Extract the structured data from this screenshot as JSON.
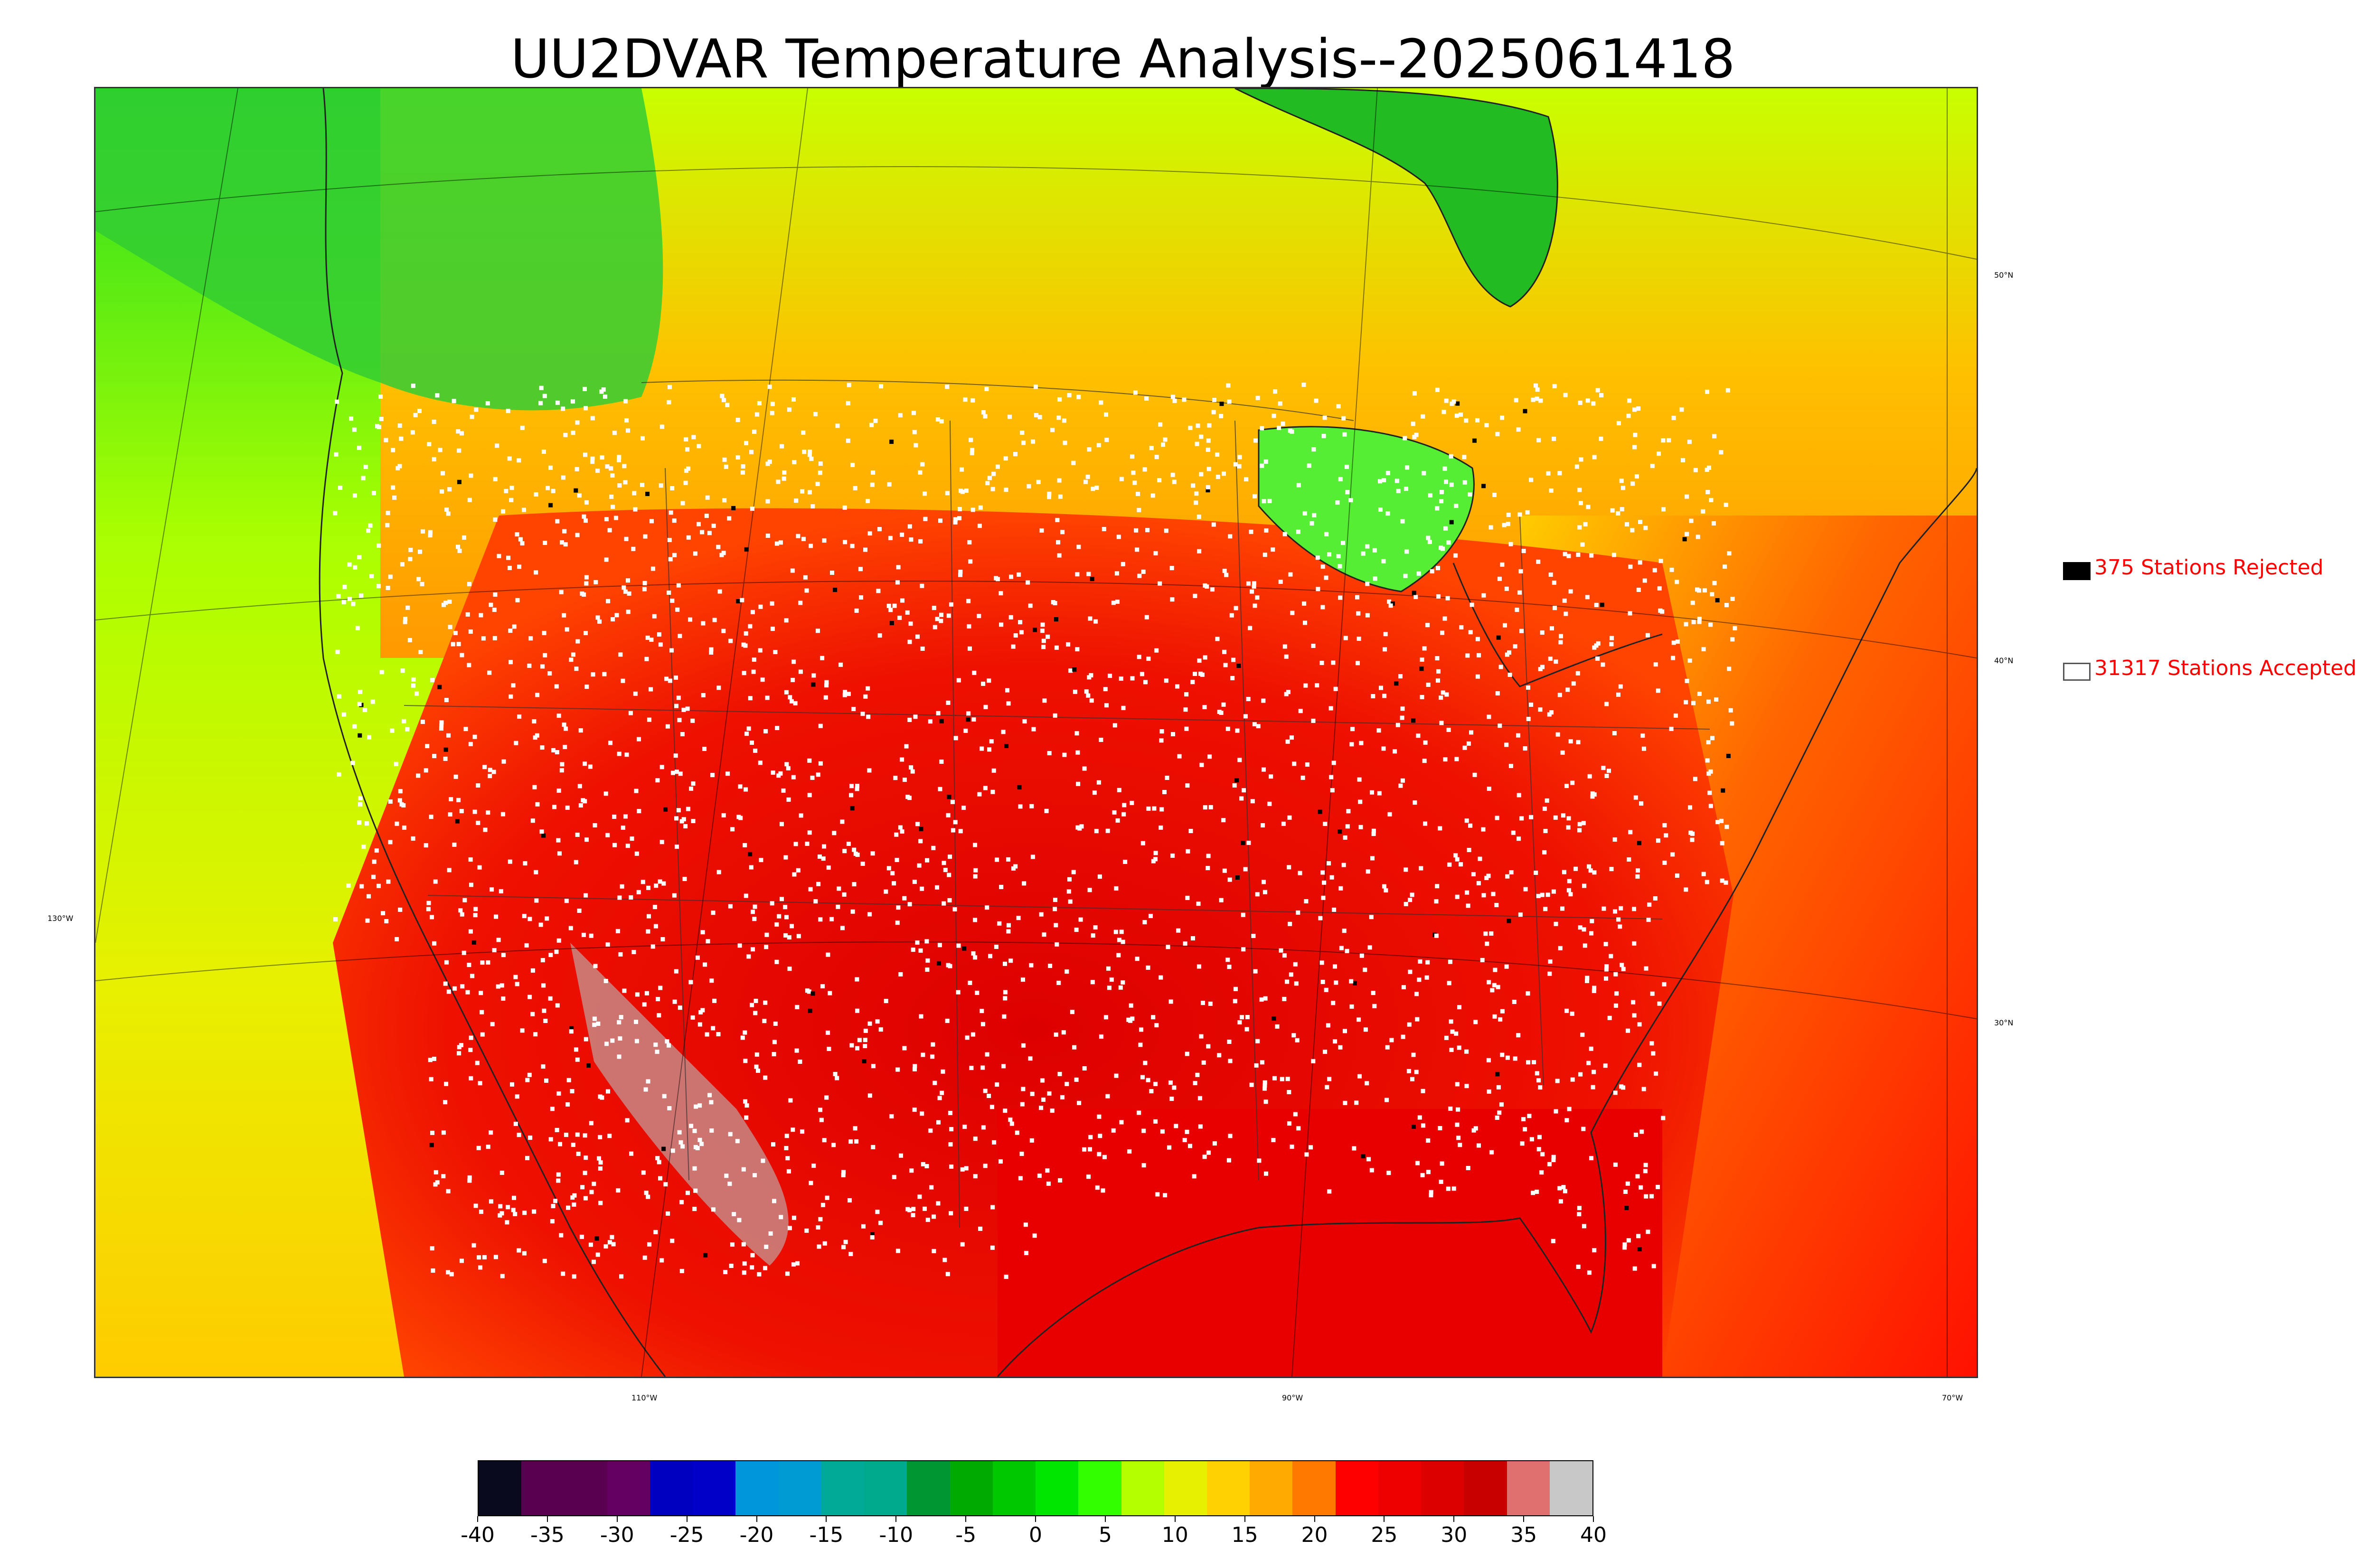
{
  "title": "UU2DVAR Temperature Analysis--2025061418",
  "graticule": {
    "lat_labels": [
      "50°N",
      "40°N",
      "30°N"
    ],
    "lon_labels": [
      "130°W",
      "110°W",
      "90°W",
      "70°W"
    ]
  },
  "legend": {
    "rejected": {
      "label": "375 Stations Rejected",
      "color": "#000000"
    },
    "accepted": {
      "label": "31317 Stations Accepted",
      "color": "#ffffff"
    }
  },
  "colorbar": {
    "min": -40,
    "max": 40,
    "tick_labels": [
      "-40",
      "-35",
      "-30",
      "-25",
      "-20",
      "-15",
      "-10",
      "-5",
      "0",
      "5",
      "10",
      "15",
      "20",
      "25",
      "30",
      "35",
      "40"
    ],
    "colors": [
      "#0a0a1e",
      "#5a0050",
      "#5a0050",
      "#640060",
      "#0000c0",
      "#0000c8",
      "#0096dc",
      "#009bd2",
      "#00aa96",
      "#00aa8c",
      "#009632",
      "#00aa00",
      "#00c800",
      "#00e600",
      "#32ff00",
      "#b4ff00",
      "#e6f000",
      "#ffd200",
      "#ffaa00",
      "#ff7800",
      "#ff0000",
      "#ee0000",
      "#dd0000",
      "#c80000",
      "#e07070",
      "#c8c8c8"
    ]
  }
}
